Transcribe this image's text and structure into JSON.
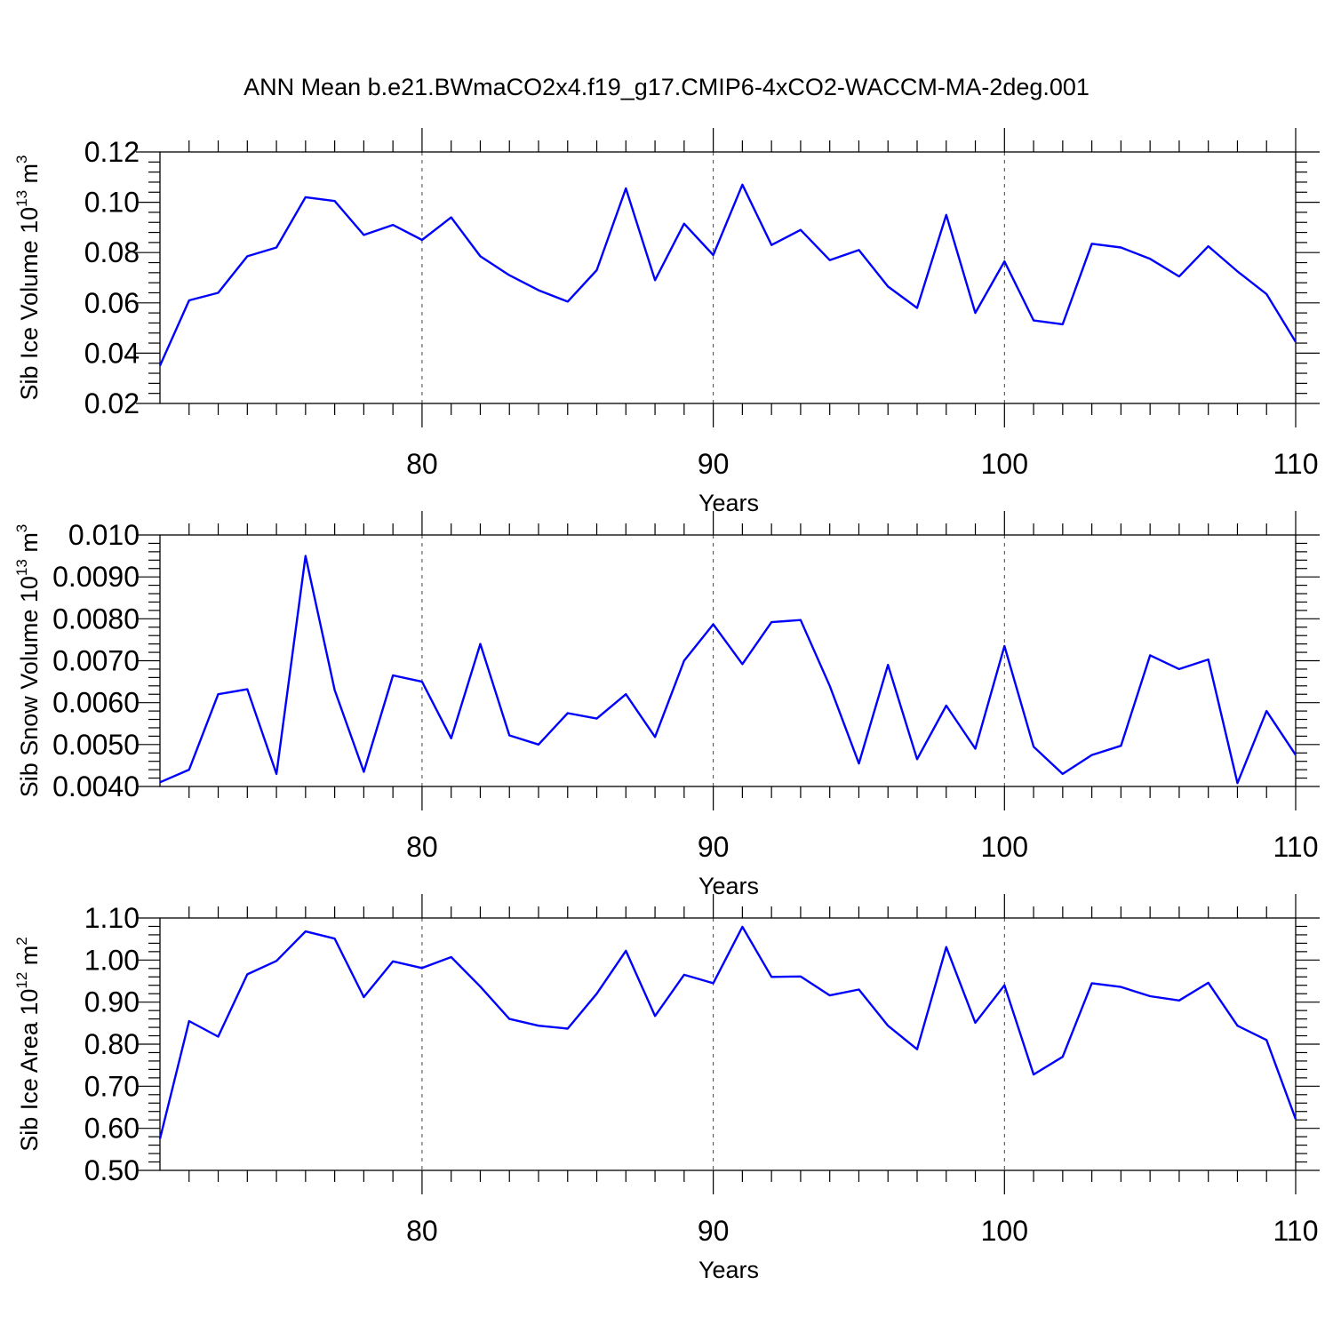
{
  "title": "ANN Mean b.e21.BWmaCO2x4.f19_g17.CMIP6-4xCO2-WACCM-MA-2deg.001",
  "chart_data": [
    {
      "type": "line",
      "ylabel": "Sib Ice Volume 10",
      "ylabel_sup": "13",
      "ylabel_unit": "m",
      "ylabel_unit_sup": "3",
      "xlabel": "Years",
      "xlim": [
        71,
        110
      ],
      "ylim": [
        0.02,
        0.12
      ],
      "yticks": [
        "0.02",
        "0.04",
        "0.06",
        "0.08",
        "0.10",
        "0.12"
      ],
      "xticks": [
        "80",
        "90",
        "100",
        "110"
      ],
      "grid_x": [
        80,
        90,
        100
      ],
      "color": "#0000ff",
      "x": [
        71,
        72,
        73,
        74,
        75,
        76,
        77,
        78,
        79,
        80,
        81,
        82,
        83,
        84,
        85,
        86,
        87,
        88,
        89,
        90,
        91,
        92,
        93,
        94,
        95,
        96,
        97,
        98,
        99,
        100,
        101,
        102,
        103,
        104,
        105,
        106,
        107,
        108,
        109,
        110
      ],
      "values": [
        0.035,
        0.061,
        0.064,
        0.0785,
        0.082,
        0.102,
        0.1005,
        0.087,
        0.091,
        0.085,
        0.094,
        0.0785,
        0.071,
        0.065,
        0.0605,
        0.073,
        0.1055,
        0.069,
        0.0915,
        0.079,
        0.107,
        0.083,
        0.089,
        0.077,
        0.081,
        0.0665,
        0.058,
        0.095,
        0.056,
        0.0765,
        0.053,
        0.0515,
        0.0835,
        0.082,
        0.0775,
        0.0705,
        0.0825,
        0.0725,
        0.0635,
        0.0445
      ]
    },
    {
      "type": "line",
      "ylabel": "Sib Snow Volume 10",
      "ylabel_sup": "13",
      "ylabel_unit": "m",
      "ylabel_unit_sup": "3",
      "xlabel": "Years",
      "xlim": [
        71,
        110
      ],
      "ylim": [
        0.004,
        0.01
      ],
      "yticks": [
        "0.0040",
        "0.0050",
        "0.0060",
        "0.0070",
        "0.0080",
        "0.0090",
        "0.010"
      ],
      "xticks": [
        "80",
        "90",
        "100",
        "110"
      ],
      "grid_x": [
        80,
        90,
        100
      ],
      "color": "#0000ff",
      "x": [
        71,
        72,
        73,
        74,
        75,
        76,
        77,
        78,
        79,
        80,
        81,
        82,
        83,
        84,
        85,
        86,
        87,
        88,
        89,
        90,
        91,
        92,
        93,
        94,
        95,
        96,
        97,
        98,
        99,
        100,
        101,
        102,
        103,
        104,
        105,
        106,
        107,
        108,
        109,
        110
      ],
      "values": [
        0.0041,
        0.0044,
        0.0062,
        0.00632,
        0.0043,
        0.0095,
        0.0063,
        0.00435,
        0.00665,
        0.0065,
        0.00515,
        0.0074,
        0.00522,
        0.005,
        0.00575,
        0.00562,
        0.0062,
        0.00518,
        0.007,
        0.00787,
        0.00692,
        0.00792,
        0.00797,
        0.0064,
        0.00455,
        0.0069,
        0.00465,
        0.00593,
        0.0049,
        0.00735,
        0.00495,
        0.0043,
        0.00475,
        0.00497,
        0.00713,
        0.0068,
        0.00703,
        0.00408,
        0.0058,
        0.00475
      ]
    },
    {
      "type": "line",
      "ylabel": "Sib Ice Area 10",
      "ylabel_sup": "12",
      "ylabel_unit": "m",
      "ylabel_unit_sup": "2",
      "xlabel": "Years",
      "xlim": [
        71,
        110
      ],
      "ylim": [
        0.5,
        1.1
      ],
      "yticks": [
        "0.50",
        "0.60",
        "0.70",
        "0.80",
        "0.90",
        "1.00",
        "1.10"
      ],
      "xticks": [
        "80",
        "90",
        "100",
        "110"
      ],
      "grid_x": [
        80,
        90,
        100
      ],
      "color": "#0000ff",
      "x": [
        71,
        72,
        73,
        74,
        75,
        76,
        77,
        78,
        79,
        80,
        81,
        82,
        83,
        84,
        85,
        86,
        87,
        88,
        89,
        90,
        91,
        92,
        93,
        94,
        95,
        96,
        97,
        98,
        99,
        100,
        101,
        102,
        103,
        104,
        105,
        106,
        107,
        108,
        109,
        110
      ],
      "values": [
        0.575,
        0.855,
        0.818,
        0.966,
        0.998,
        1.068,
        1.051,
        0.912,
        0.997,
        0.981,
        1.007,
        0.937,
        0.86,
        0.844,
        0.837,
        0.92,
        1.022,
        0.867,
        0.965,
        0.945,
        1.079,
        0.96,
        0.961,
        0.916,
        0.93,
        0.844,
        0.788,
        1.031,
        0.851,
        0.94,
        0.728,
        0.77,
        0.945,
        0.936,
        0.914,
        0.904,
        0.946,
        0.844,
        0.81,
        0.622
      ]
    }
  ]
}
